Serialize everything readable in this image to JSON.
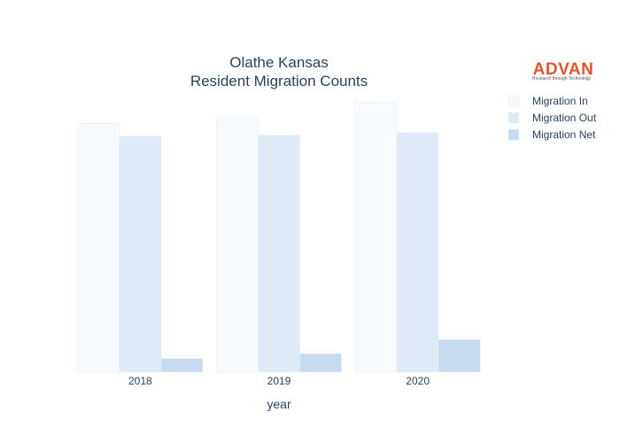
{
  "logo": {
    "name": "ADVAN",
    "tagline": "Research through Technology"
  },
  "chart_data": {
    "type": "bar",
    "title": "Olathe Kansas",
    "subtitle": "Resident Migration Counts",
    "xlabel": "year",
    "ylabel": "",
    "categories": [
      "2018",
      "2019",
      "2020"
    ],
    "ylim": [
      0,
      1
    ],
    "y_ticks_visible": false,
    "grid": false,
    "legend_position": "top-right",
    "series": [
      {
        "name": "Migration In",
        "values": [
          0.92,
          0.945,
          1.0
        ],
        "color": "#f7fbff"
      },
      {
        "name": "Migration Out",
        "values": [
          0.873,
          0.877,
          0.887
        ],
        "color": "#deebf7"
      },
      {
        "name": "Migration Net",
        "values": [
          0.05,
          0.068,
          0.12
        ],
        "color": "#c6dbef"
      }
    ]
  }
}
